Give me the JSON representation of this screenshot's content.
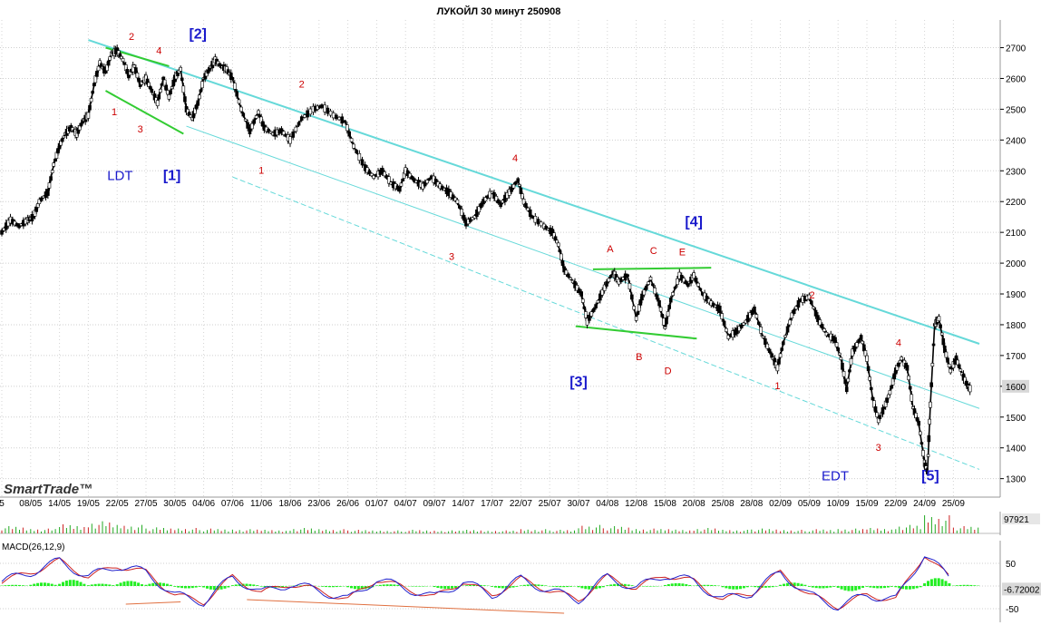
{
  "chart_data": {
    "type": "line",
    "title": "ЛУКОЙЛ 30 минут 250908",
    "logo": "SmartTrade™",
    "price_axis": {
      "ylim": [
        1240,
        2790
      ],
      "ticks": [
        {
          "value": 2700,
          "label": "2700"
        },
        {
          "value": 2600,
          "label": "2600"
        },
        {
          "value": 2500,
          "label": "2500"
        },
        {
          "value": 2400,
          "label": "2400"
        },
        {
          "value": 2300,
          "label": "2300"
        },
        {
          "value": 2200,
          "label": "2200"
        },
        {
          "value": 2100,
          "label": "2100"
        },
        {
          "value": 2000,
          "label": "2000"
        },
        {
          "value": 1900,
          "label": "1900"
        },
        {
          "value": 1800,
          "label": "1800"
        },
        {
          "value": 1700,
          "label": "1700"
        },
        {
          "value": 1600,
          "label": "1600"
        },
        {
          "value": 1500,
          "label": "1500"
        },
        {
          "value": 1400,
          "label": "1400"
        },
        {
          "value": 1300,
          "label": "1300"
        }
      ],
      "last_price_label": "1600"
    },
    "dates": [
      "5",
      "08/05",
      "14/05",
      "19/05",
      "22/05",
      "27/05",
      "30/05",
      "04/06",
      "07/06",
      "11/06",
      "18/06",
      "23/06",
      "26/06",
      "01/07",
      "04/07",
      "09/07",
      "14/07",
      "17/07",
      "22/07",
      "25/07",
      "30/07",
      "04/08",
      "12/08",
      "15/08",
      "20/08",
      "25/08",
      "28/08",
      "02/09",
      "05/09",
      "10/09",
      "15/09",
      "22/09",
      "24/09",
      "25/09"
    ],
    "series": [
      {
        "type": "candlestick_path",
        "color": "#000000",
        "points": [
          {
            "i": 0.0,
            "y": 2100
          },
          {
            "i": 0.3,
            "y": 2140
          },
          {
            "i": 0.6,
            "y": 2120
          },
          {
            "i": 0.9,
            "y": 2140
          },
          {
            "i": 1.1,
            "y": 2150
          },
          {
            "i": 1.3,
            "y": 2200
          },
          {
            "i": 1.6,
            "y": 2230
          },
          {
            "i": 1.8,
            "y": 2320
          },
          {
            "i": 2.0,
            "y": 2380
          },
          {
            "i": 2.2,
            "y": 2420
          },
          {
            "i": 2.4,
            "y": 2440
          },
          {
            "i": 2.6,
            "y": 2420
          },
          {
            "i": 2.8,
            "y": 2460
          },
          {
            "i": 3.0,
            "y": 2480
          },
          {
            "i": 3.2,
            "y": 2580
          },
          {
            "i": 3.4,
            "y": 2650
          },
          {
            "i": 3.6,
            "y": 2620
          },
          {
            "i": 3.8,
            "y": 2680
          },
          {
            "i": 4.0,
            "y": 2690
          },
          {
            "i": 4.2,
            "y": 2660
          },
          {
            "i": 4.4,
            "y": 2610
          },
          {
            "i": 4.6,
            "y": 2640
          },
          {
            "i": 4.8,
            "y": 2580
          },
          {
            "i": 5.0,
            "y": 2600
          },
          {
            "i": 5.2,
            "y": 2560
          },
          {
            "i": 5.4,
            "y": 2520
          },
          {
            "i": 5.6,
            "y": 2600
          },
          {
            "i": 5.8,
            "y": 2540
          },
          {
            "i": 6.0,
            "y": 2600
          },
          {
            "i": 6.2,
            "y": 2630
          },
          {
            "i": 6.4,
            "y": 2500
          },
          {
            "i": 6.6,
            "y": 2470
          },
          {
            "i": 6.8,
            "y": 2520
          },
          {
            "i": 7.0,
            "y": 2600
          },
          {
            "i": 7.2,
            "y": 2630
          },
          {
            "i": 7.4,
            "y": 2660
          },
          {
            "i": 7.6,
            "y": 2640
          },
          {
            "i": 7.8,
            "y": 2630
          },
          {
            "i": 8.0,
            "y": 2600
          },
          {
            "i": 8.3,
            "y": 2500
          },
          {
            "i": 8.6,
            "y": 2430
          },
          {
            "i": 8.9,
            "y": 2490
          },
          {
            "i": 9.1,
            "y": 2440
          },
          {
            "i": 9.4,
            "y": 2420
          },
          {
            "i": 9.7,
            "y": 2430
          },
          {
            "i": 10.0,
            "y": 2400
          },
          {
            "i": 10.4,
            "y": 2470
          },
          {
            "i": 10.8,
            "y": 2500
          },
          {
            "i": 11.1,
            "y": 2510
          },
          {
            "i": 11.5,
            "y": 2480
          },
          {
            "i": 11.9,
            "y": 2460
          },
          {
            "i": 12.2,
            "y": 2380
          },
          {
            "i": 12.6,
            "y": 2310
          },
          {
            "i": 12.9,
            "y": 2280
          },
          {
            "i": 13.2,
            "y": 2300
          },
          {
            "i": 13.5,
            "y": 2260
          },
          {
            "i": 13.8,
            "y": 2240
          },
          {
            "i": 14.0,
            "y": 2300
          },
          {
            "i": 14.3,
            "y": 2270
          },
          {
            "i": 14.6,
            "y": 2250
          },
          {
            "i": 14.9,
            "y": 2280
          },
          {
            "i": 15.2,
            "y": 2250
          },
          {
            "i": 15.5,
            "y": 2230
          },
          {
            "i": 15.8,
            "y": 2200
          },
          {
            "i": 16.1,
            "y": 2130
          },
          {
            "i": 16.4,
            "y": 2150
          },
          {
            "i": 16.7,
            "y": 2200
          },
          {
            "i": 17.0,
            "y": 2230
          },
          {
            "i": 17.3,
            "y": 2190
          },
          {
            "i": 17.6,
            "y": 2230
          },
          {
            "i": 17.9,
            "y": 2270
          },
          {
            "i": 18.1,
            "y": 2200
          },
          {
            "i": 18.4,
            "y": 2150
          },
          {
            "i": 18.8,
            "y": 2120
          },
          {
            "i": 19.1,
            "y": 2100
          },
          {
            "i": 19.3,
            "y": 2060
          },
          {
            "i": 19.5,
            "y": 1980
          },
          {
            "i": 19.8,
            "y": 1940
          },
          {
            "i": 20.1,
            "y": 1900
          },
          {
            "i": 20.3,
            "y": 1810
          },
          {
            "i": 20.6,
            "y": 1860
          },
          {
            "i": 20.9,
            "y": 1920
          },
          {
            "i": 21.2,
            "y": 1970
          },
          {
            "i": 21.4,
            "y": 1940
          },
          {
            "i": 21.7,
            "y": 1960
          },
          {
            "i": 22.0,
            "y": 1820
          },
          {
            "i": 22.2,
            "y": 1890
          },
          {
            "i": 22.5,
            "y": 1950
          },
          {
            "i": 22.8,
            "y": 1870
          },
          {
            "i": 23.0,
            "y": 1790
          },
          {
            "i": 23.2,
            "y": 1880
          },
          {
            "i": 23.5,
            "y": 1960
          },
          {
            "i": 23.8,
            "y": 1930
          },
          {
            "i": 24.0,
            "y": 1960
          },
          {
            "i": 24.3,
            "y": 1900
          },
          {
            "i": 24.6,
            "y": 1870
          },
          {
            "i": 24.9,
            "y": 1850
          },
          {
            "i": 25.2,
            "y": 1760
          },
          {
            "i": 25.5,
            "y": 1780
          },
          {
            "i": 25.8,
            "y": 1810
          },
          {
            "i": 26.1,
            "y": 1850
          },
          {
            "i": 26.4,
            "y": 1760
          },
          {
            "i": 26.7,
            "y": 1700
          },
          {
            "i": 26.9,
            "y": 1660
          },
          {
            "i": 27.1,
            "y": 1740
          },
          {
            "i": 27.4,
            "y": 1830
          },
          {
            "i": 27.7,
            "y": 1880
          },
          {
            "i": 28.0,
            "y": 1890
          },
          {
            "i": 28.3,
            "y": 1820
          },
          {
            "i": 28.6,
            "y": 1770
          },
          {
            "i": 28.9,
            "y": 1750
          },
          {
            "i": 29.1,
            "y": 1690
          },
          {
            "i": 29.3,
            "y": 1590
          },
          {
            "i": 29.5,
            "y": 1710
          },
          {
            "i": 29.8,
            "y": 1760
          },
          {
            "i": 30.0,
            "y": 1690
          },
          {
            "i": 30.2,
            "y": 1560
          },
          {
            "i": 30.4,
            "y": 1490
          },
          {
            "i": 30.6,
            "y": 1530
          },
          {
            "i": 30.8,
            "y": 1580
          },
          {
            "i": 31.0,
            "y": 1650
          },
          {
            "i": 31.2,
            "y": 1690
          },
          {
            "i": 31.4,
            "y": 1660
          },
          {
            "i": 31.6,
            "y": 1530
          },
          {
            "i": 31.8,
            "y": 1480
          },
          {
            "i": 32.0,
            "y": 1350
          },
          {
            "i": 32.1,
            "y": 1320
          },
          {
            "i": 32.2,
            "y": 1540
          },
          {
            "i": 32.35,
            "y": 1800
          },
          {
            "i": 32.5,
            "y": 1820
          },
          {
            "i": 32.7,
            "y": 1720
          },
          {
            "i": 32.9,
            "y": 1650
          },
          {
            "i": 33.1,
            "y": 1690
          },
          {
            "i": 33.3,
            "y": 1640
          },
          {
            "i": 33.5,
            "y": 1600
          },
          {
            "i": 33.6,
            "y": 1590
          }
        ]
      }
    ],
    "channel_lines": [
      {
        "name": "upper-trendline",
        "color": "#66d9d9",
        "width": 2,
        "from": {
          "i": 3.0,
          "y": 2725
        },
        "to": {
          "i": 33.9,
          "y": 1738
        }
      },
      {
        "name": "middle-channel",
        "color": "#66d9d9",
        "width": 1,
        "from": {
          "i": 6.4,
          "y": 2445
        },
        "to": {
          "i": 33.9,
          "y": 1528
        }
      },
      {
        "name": "lower-channel",
        "color": "#66d9d9",
        "width": 1,
        "dashed": true,
        "from": {
          "i": 8.0,
          "y": 2280
        },
        "to": {
          "i": 33.9,
          "y": 1330
        }
      },
      {
        "name": "triangle-upper",
        "color": "#33cc33",
        "width": 2,
        "from": {
          "i": 3.6,
          "y": 2700
        },
        "to": {
          "i": 5.8,
          "y": 2640
        }
      },
      {
        "name": "triangle-lower",
        "color": "#33cc33",
        "width": 2,
        "from": {
          "i": 3.6,
          "y": 2560
        },
        "to": {
          "i": 6.3,
          "y": 2420
        }
      },
      {
        "name": "flag-upper",
        "color": "#33cc33",
        "width": 2,
        "from": {
          "i": 20.5,
          "y": 1980
        },
        "to": {
          "i": 24.6,
          "y": 1985
        }
      },
      {
        "name": "flag-lower",
        "color": "#33cc33",
        "width": 2,
        "from": {
          "i": 19.9,
          "y": 1795
        },
        "to": {
          "i": 24.1,
          "y": 1755
        }
      }
    ],
    "annotations": [
      {
        "text": "2",
        "style": "red",
        "i": 4.5,
        "y": 2725
      },
      {
        "text": "4",
        "style": "red",
        "i": 5.45,
        "y": 2680
      },
      {
        "text": "1",
        "style": "red",
        "i": 3.9,
        "y": 2480
      },
      {
        "text": "3",
        "style": "red",
        "i": 4.8,
        "y": 2425
      },
      {
        "text": "[2]",
        "style": "blue",
        "i": 6.8,
        "y": 2730
      },
      {
        "text": "[1]",
        "style": "blue",
        "i": 5.9,
        "y": 2270
      },
      {
        "text": "LDT",
        "style": "label",
        "i": 4.1,
        "y": 2270
      },
      {
        "text": "2",
        "style": "red",
        "i": 10.4,
        "y": 2570
      },
      {
        "text": "1",
        "style": "red",
        "i": 9.0,
        "y": 2290
      },
      {
        "text": "3",
        "style": "red",
        "i": 15.6,
        "y": 2010
      },
      {
        "text": "4",
        "style": "red",
        "i": 17.8,
        "y": 2330
      },
      {
        "text": "[3]",
        "style": "blue",
        "i": 20.0,
        "y": 1600
      },
      {
        "text": "A",
        "style": "red",
        "i": 21.1,
        "y": 2035
      },
      {
        "text": "B",
        "style": "red",
        "i": 22.1,
        "y": 1685
      },
      {
        "text": "C",
        "style": "red",
        "i": 22.6,
        "y": 2030
      },
      {
        "text": "D",
        "style": "red",
        "i": 23.1,
        "y": 1640
      },
      {
        "text": "E",
        "style": "red",
        "i": 23.6,
        "y": 2025
      },
      {
        "text": "[4]",
        "style": "blue",
        "i": 24.0,
        "y": 2120
      },
      {
        "text": "2",
        "style": "red",
        "i": 28.1,
        "y": 1885
      },
      {
        "text": "1",
        "style": "red",
        "i": 26.9,
        "y": 1590
      },
      {
        "text": "3",
        "style": "red",
        "i": 30.4,
        "y": 1390
      },
      {
        "text": "4",
        "style": "red",
        "i": 31.1,
        "y": 1730
      },
      {
        "text": "EDT",
        "style": "label",
        "i": 28.9,
        "y": 1295
      },
      {
        "text": "[5]",
        "style": "blue",
        "i": 32.2,
        "y": 1295
      }
    ],
    "volume": {
      "top_label": "97921",
      "bar_color": "#22aa22",
      "values": [
        12,
        8,
        15,
        20,
        14,
        10,
        9,
        8,
        7,
        6,
        9,
        7,
        6,
        5,
        6,
        5,
        6,
        5,
        7,
        6,
        14,
        12,
        8,
        7,
        9,
        6,
        8,
        6,
        7,
        8,
        9,
        14,
        30,
        12
      ]
    },
    "macd": {
      "title": "MACD(26,12,9)",
      "axis_ticks": [
        {
          "value": 50,
          "label": "50"
        },
        {
          "value": 0,
          "label": "0"
        },
        {
          "value": -50,
          "label": "-50"
        }
      ],
      "last_value_label": "-6.72002",
      "ylim": [
        -80,
        100
      ],
      "macd_color": "#2222cc",
      "signal_color": "#cc2222",
      "hist_color": "#22ee22",
      "values": [
        10,
        30,
        55,
        20,
        45,
        30,
        -20,
        -35,
        20,
        -15,
        5,
        -10,
        -30,
        15,
        -5,
        -25,
        10,
        -20,
        15,
        -10,
        -30,
        20,
        -5,
        25,
        10,
        -30,
        -15,
        30,
        -20,
        -45,
        -20,
        -30,
        70,
        10
      ],
      "divergence_lines": [
        {
          "from": {
            "i": 4.3,
            "y": -40
          },
          "to": {
            "i": 6.2,
            "y": -35
          }
        },
        {
          "from": {
            "i": 8.5,
            "y": -30
          },
          "to": {
            "i": 19.5,
            "y": -60
          }
        }
      ]
    }
  }
}
